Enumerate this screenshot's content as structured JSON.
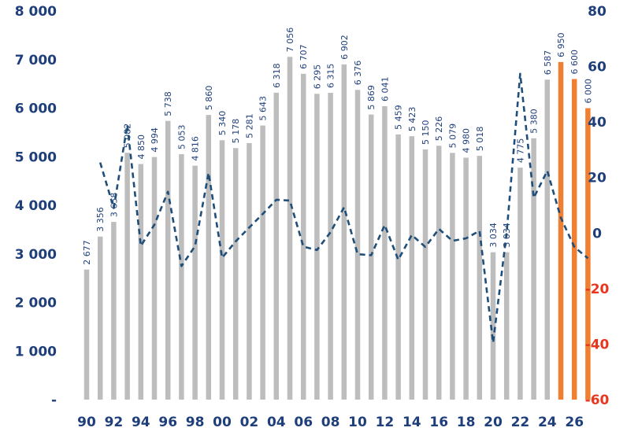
{
  "chart_data": {
    "type": "bar",
    "categories": [
      "90",
      "91",
      "92",
      "93",
      "94",
      "95",
      "96",
      "97",
      "98",
      "99",
      "00",
      "01",
      "02",
      "03",
      "04",
      "05",
      "06",
      "07",
      "08",
      "09",
      "10",
      "11",
      "12",
      "13",
      "14",
      "15",
      "16",
      "17",
      "18",
      "19",
      "20",
      "21",
      "22",
      "23",
      "24",
      "25",
      "26",
      "27"
    ],
    "x_tick_labels": [
      "90",
      "92",
      "94",
      "96",
      "98",
      "00",
      "02",
      "04",
      "06",
      "08",
      "10",
      "12",
      "14",
      "16",
      "18",
      "20",
      "22",
      "24",
      "26"
    ],
    "series": [
      {
        "kind": "bar",
        "axis": "left",
        "values": [
          2677,
          3356,
          3658,
          5082,
          4850,
          4994,
          5738,
          5053,
          4816,
          5860,
          5340,
          5178,
          5281,
          5643,
          6318,
          7056,
          6707,
          6295,
          6315,
          6902,
          6376,
          5869,
          6041,
          5459,
          5423,
          5150,
          5226,
          5079,
          4980,
          5018,
          3034,
          3034,
          4775,
          5380,
          6587,
          6950,
          6600,
          6000
        ],
        "labels": [
          "2 677",
          "3 356",
          "3 658",
          "5 082",
          "4 850",
          "4 994",
          "5 738",
          "5 053",
          "4 816",
          "5 860",
          "5 340",
          "5 178",
          "5 281",
          "5 643",
          "6 318",
          "7 056",
          "6 707",
          "6 295",
          "6 315",
          "6 902",
          "6 376",
          "5 869",
          "6 041",
          "5 459",
          "5 423",
          "5 150",
          "5 226",
          "5 079",
          "4 980",
          "5 018",
          "3 034",
          "3 034",
          "4 775",
          "5 380",
          "6 587",
          "6 950",
          "6 600",
          "6 000"
        ],
        "forecast_from_index": 35
      },
      {
        "kind": "line",
        "axis": "right",
        "style": "dashed",
        "values": [
          null,
          25.4,
          9.0,
          38.9,
          -4.6,
          3.0,
          14.9,
          -11.9,
          -4.7,
          21.7,
          -8.9,
          -3.0,
          2.0,
          6.9,
          12.0,
          11.7,
          -4.9,
          -6.1,
          0.3,
          9.3,
          -7.6,
          -8.0,
          2.9,
          -9.6,
          -0.7,
          -5.0,
          1.5,
          -2.8,
          -1.9,
          0.8,
          -39.5,
          0.0,
          57.4,
          12.7,
          22.4,
          5.5,
          -5.0,
          -9.1
        ]
      }
    ],
    "left_axis": {
      "ticks": [
        "-",
        "1 000",
        "2 000",
        "3 000",
        "4 000",
        "5 000",
        "6 000",
        "7 000",
        "8 000"
      ],
      "range": [
        0,
        8000
      ]
    },
    "right_axis": {
      "ticks": [
        "-60",
        "-40",
        "-20",
        "0",
        "20",
        "40",
        "60",
        "80"
      ],
      "range": [
        -60,
        80
      ]
    },
    "colors": {
      "bar": "#bdbdbd",
      "bar_forecast": "#f07f31",
      "line": "#1f4e79",
      "axis_text": "#1f3f7a",
      "negative_text": "#e8361f"
    },
    "grid": false,
    "legend": "none"
  }
}
